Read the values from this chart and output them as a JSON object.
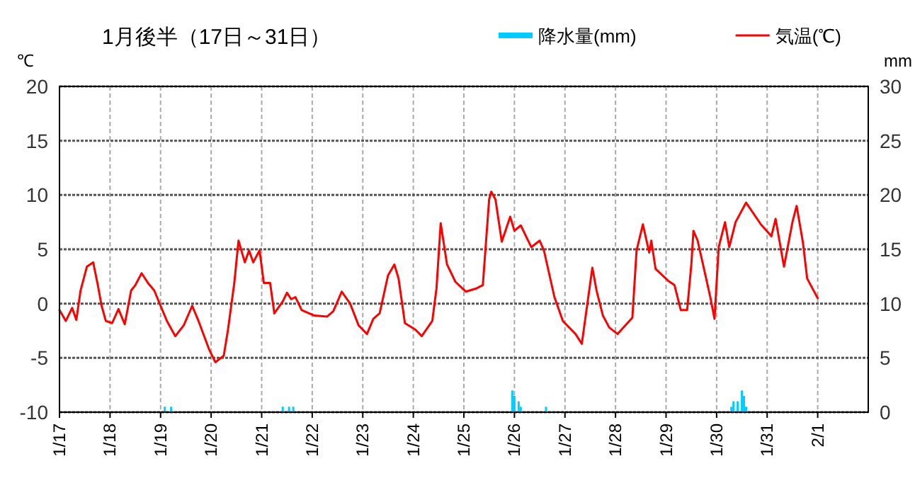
{
  "chart_data": {
    "type": "line",
    "title": "1月後半（17日～31日）",
    "ylabel": "℃",
    "y2label": "mm",
    "xlim": [
      "--01-17",
      "--02-02"
    ],
    "xticks": [
      {
        "value": "--01-17",
        "label": "1/17"
      },
      {
        "value": "--01-18",
        "label": "1/18"
      },
      {
        "value": "--01-19",
        "label": "1/19"
      },
      {
        "value": "--01-20",
        "label": "1/20"
      },
      {
        "value": "--01-21",
        "label": "1/21"
      },
      {
        "value": "--01-22",
        "label": "1/22"
      },
      {
        "value": "--01-23",
        "label": "1/23"
      },
      {
        "value": "--01-24",
        "label": "1/24"
      },
      {
        "value": "--01-25",
        "label": "1/25"
      },
      {
        "value": "--01-26",
        "label": "1/26"
      },
      {
        "value": "--01-27",
        "label": "1/27"
      },
      {
        "value": "--01-28",
        "label": "1/28"
      },
      {
        "value": "--01-29",
        "label": "1/29"
      },
      {
        "value": "--01-30",
        "label": "1/30"
      },
      {
        "value": "--01-31",
        "label": "1/31"
      },
      {
        "value": "--02-01",
        "label": "2/1"
      }
    ],
    "ylim": [
      -10,
      20
    ],
    "yticks": [
      -10,
      -5,
      0,
      5,
      10,
      15,
      20
    ],
    "y2lim": [
      0,
      30
    ],
    "y2ticks": [
      0,
      5,
      10,
      15,
      20,
      25,
      30
    ],
    "grid": true,
    "legend": "top right",
    "series": [
      {
        "name": "降水量(mm)",
        "type": "bar",
        "axis": "y2",
        "color": "#00ccff",
        "x": [
          "--01-19T02:00",
          "--01-19T05:00",
          "--01-21T10:00",
          "--01-21T13:00",
          "--01-21T15:00",
          "--01-25T23:00",
          "--01-26T00:00",
          "--01-26T02:00",
          "--01-26T03:00",
          "--01-26T15:00",
          "--01-30T07:00",
          "--01-30T08:00",
          "--01-30T10:00",
          "--01-30T12:00",
          "--01-30T13:00",
          "--01-30T14:00"
        ],
        "values": [
          0.5,
          0.5,
          0.5,
          0.5,
          0.5,
          2.0,
          1.5,
          1.0,
          0.5,
          0.5,
          0.5,
          1.0,
          1.0,
          2.0,
          1.5,
          0.5
        ]
      },
      {
        "name": "気温(℃)",
        "type": "line",
        "color": "#ff0000",
        "x": [
          "--01-17T00:00",
          "--01-17T03:00",
          "--01-17T06:00",
          "--01-17T08:00",
          "--01-17T10:00",
          "--01-17T13:00",
          "--01-17T16:00",
          "--01-17T18:00",
          "--01-17T20:00",
          "--01-17T22:00",
          "--01-18T01:00",
          "--01-18T04:00",
          "--01-18T07:00",
          "--01-18T10:00",
          "--01-18T12:00",
          "--01-18T15:00",
          "--01-18T18:00",
          "--01-18T21:00",
          "--01-19T00:00",
          "--01-19T03:00",
          "--01-19T07:00",
          "--01-19T11:00",
          "--01-19T15:00",
          "--01-19T18:00",
          "--01-19T23:00",
          "--01-20T02:00",
          "--01-20T06:00",
          "--01-20T08:00",
          "--01-20T11:00",
          "--01-20T13:00",
          "--01-20T16:00",
          "--01-20T18:00",
          "--01-20T20:00",
          "--01-20T23:00",
          "--01-21T01:00",
          "--01-21T04:00",
          "--01-21T06:00",
          "--01-21T10:00",
          "--01-21T12:00",
          "--01-21T14:00",
          "--01-21T16:00",
          "--01-21T19:00",
          "--01-22T01:00",
          "--01-22T07:00",
          "--01-22T10:00",
          "--01-22T14:00",
          "--01-22T18:00",
          "--01-22T22:00",
          "--01-23T02:00",
          "--01-23T05:00",
          "--01-23T08:00",
          "--01-23T12:00",
          "--01-23T15:00",
          "--01-23T17:00",
          "--01-23T20:00",
          "--01-24T01:00",
          "--01-24T04:00",
          "--01-24T09:00",
          "--01-24T11:00",
          "--01-24T13:00",
          "--01-24T16:00",
          "--01-24T20:00",
          "--01-25T01:00",
          "--01-25T06:00",
          "--01-25T09:00",
          "--01-25T12:00",
          "--01-25T13:00",
          "--01-25T15:00",
          "--01-25T18:00",
          "--01-25T22:00",
          "--01-26T00:00",
          "--01-26T03:00",
          "--01-26T08:00",
          "--01-26T12:00",
          "--01-26T14:00",
          "--01-26T19:00",
          "--01-26T23:00",
          "--01-27T05:00",
          "--01-27T08:00",
          "--01-27T13:00",
          "--01-27T15:00",
          "--01-27T18:00",
          "--01-27T21:00",
          "--01-28T01:00",
          "--01-28T08:00",
          "--01-28T10:00",
          "--01-28T13:00",
          "--01-28T16:00",
          "--01-28T17:00",
          "--01-28T19:00",
          "--01-29T01:00",
          "--01-29T04:00",
          "--01-29T07:00",
          "--01-29T10:00",
          "--01-29T12:00",
          "--01-29T13:00",
          "--01-29T15:00",
          "--01-29T18:00",
          "--01-29T21:00",
          "--01-29T23:00",
          "--01-30T01:00",
          "--01-30T04:00",
          "--01-30T06:00",
          "--01-30T09:00",
          "--01-30T14:00",
          "--01-30T21:00",
          "--01-31T02:00",
          "--01-31T04:00",
          "--01-31T08:00",
          "--01-31T12:00",
          "--01-31T14:00",
          "--01-31T17:00",
          "--01-31T19:00",
          "--02-01T00:00"
        ],
        "values": [
          -0.6,
          -1.6,
          -0.4,
          -1.5,
          1.2,
          3.4,
          3.8,
          1.9,
          -0.2,
          -1.6,
          -1.8,
          -0.5,
          -1.9,
          1.2,
          1.7,
          2.8,
          1.9,
          1.2,
          -0.2,
          -1.6,
          -3.0,
          -2.0,
          -0.2,
          -1.6,
          -4.2,
          -5.4,
          -4.8,
          -2.4,
          1.9,
          5.8,
          3.8,
          4.9,
          3.8,
          4.9,
          1.9,
          1.9,
          -0.9,
          0.2,
          1.0,
          0.4,
          0.6,
          -0.6,
          -1.1,
          -1.2,
          -0.7,
          1.1,
          0.0,
          -2.0,
          -2.8,
          -1.4,
          -0.9,
          2.6,
          3.6,
          2.3,
          -1.8,
          -2.4,
          -3.0,
          -1.6,
          1.4,
          7.4,
          3.6,
          2.0,
          1.1,
          1.4,
          1.7,
          9.6,
          10.3,
          9.6,
          5.7,
          8.0,
          6.7,
          7.2,
          5.2,
          5.8,
          4.9,
          0.6,
          -1.6,
          -2.8,
          -3.7,
          3.3,
          1.2,
          -1.1,
          -2.2,
          -2.8,
          -1.3,
          4.9,
          7.3,
          4.7,
          5.8,
          3.2,
          2.1,
          1.7,
          -0.6,
          -0.6,
          3.6,
          6.7,
          5.8,
          3.2,
          0.6,
          -1.4,
          5.2,
          7.5,
          5.2,
          7.5,
          9.3,
          7.3,
          6.2,
          7.8,
          3.4,
          7.5,
          9.0,
          5.6,
          2.3,
          0.5
        ]
      }
    ]
  }
}
